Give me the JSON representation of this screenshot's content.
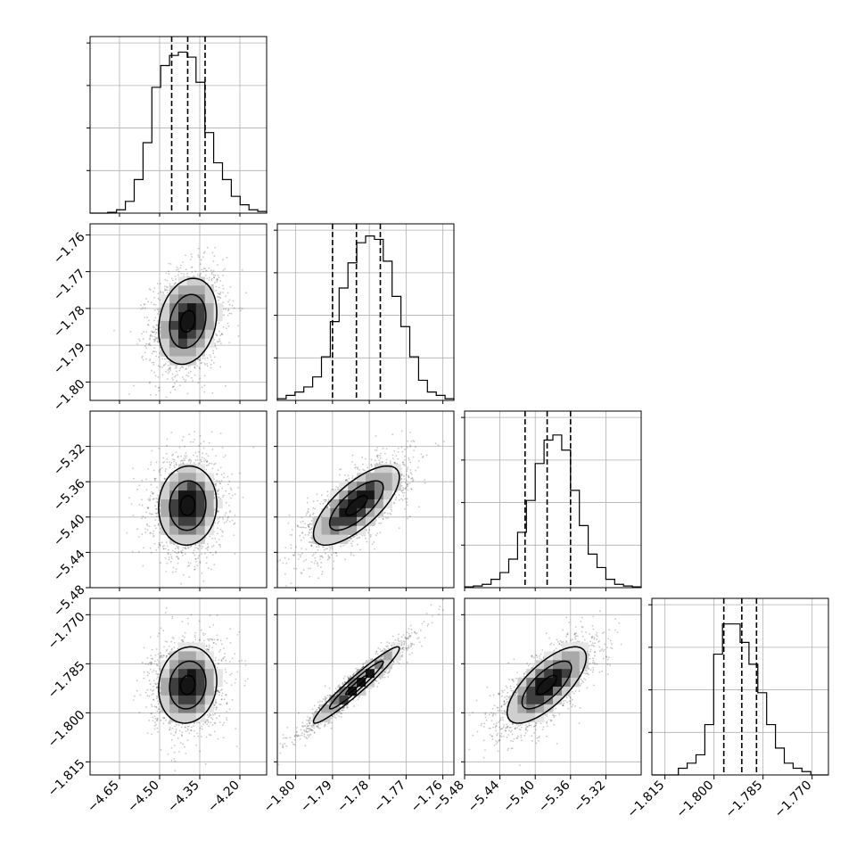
{
  "chart_data": {
    "type": "corner",
    "parameters": 4,
    "grid": true,
    "axis_ticks": [
      {
        "x_ticks": [
          -4.65,
          -4.5,
          -4.35,
          -4.2
        ],
        "x_labels": [
          "−4.65",
          "−4.50",
          "−4.35",
          "−4.20"
        ]
      },
      {
        "x_ticks": [
          -1.8,
          -1.79,
          -1.78,
          -1.77,
          -1.76
        ],
        "x_labels": [
          "−1.80",
          "−1.79",
          "−1.78",
          "−1.77",
          "−1.76"
        ],
        "y_ticks": [
          -1.76,
          -1.77,
          -1.78,
          -1.79,
          -1.8
        ],
        "y_labels": [
          "−1.76",
          "−1.77",
          "−1.78",
          "−1.79",
          "−1.80"
        ]
      },
      {
        "x_ticks": [
          -5.48,
          -5.44,
          -5.4,
          -5.36,
          -5.32
        ],
        "x_labels": [
          "−5.48",
          "−5.44",
          "−5.40",
          "−5.36",
          "−5.32"
        ],
        "y_ticks": [
          -5.32,
          -5.36,
          -5.4,
          -5.44,
          -5.48
        ],
        "y_labels": [
          "−5.32",
          "−5.36",
          "−5.40",
          "−5.44",
          "−5.48"
        ]
      },
      {
        "x_ticks": [
          -1.815,
          -1.8,
          -1.785,
          -1.77
        ],
        "x_labels": [
          "−1.815",
          "−1.800",
          "−1.785",
          "−1.770"
        ],
        "y_ticks": [
          -1.77,
          -1.785,
          -1.8,
          -1.815
        ],
        "y_labels": [
          "−1.770",
          "−1.785",
          "−1.800",
          "−1.815"
        ]
      }
    ],
    "ranges": [
      [
        -4.76,
        -4.1
      ],
      [
        -1.805,
        -1.757
      ],
      [
        -5.48,
        -5.28
      ],
      [
        -1.819,
        -1.765
      ]
    ],
    "marginals": [
      {
        "quantiles": [
          -4.455,
          -4.395,
          -4.33
        ],
        "counts": [
          0.0,
          0.0,
          0.005,
          0.02,
          0.07,
          0.2,
          0.42,
          0.75,
          0.88,
          0.94,
          0.96,
          0.93,
          0.78,
          0.48,
          0.3,
          0.2,
          0.1,
          0.05,
          0.02,
          0.01
        ]
      },
      {
        "quantiles": [
          -1.79,
          -1.7835,
          -1.777
        ],
        "counts": [
          0.01,
          0.03,
          0.05,
          0.08,
          0.14,
          0.26,
          0.47,
          0.67,
          0.82,
          0.94,
          0.98,
          0.96,
          0.83,
          0.62,
          0.44,
          0.26,
          0.12,
          0.05,
          0.03,
          0.01
        ]
      },
      {
        "quantiles": [
          -5.4115,
          -5.3865,
          -5.36
        ],
        "counts": [
          0.005,
          0.01,
          0.02,
          0.05,
          0.09,
          0.17,
          0.33,
          0.52,
          0.74,
          0.88,
          0.91,
          0.82,
          0.58,
          0.37,
          0.2,
          0.12,
          0.05,
          0.02,
          0.01,
          0.005
        ]
      },
      {
        "quantiles": [
          -1.797,
          -1.7915,
          -1.787
        ],
        "counts": [
          0.0,
          0.0,
          0.0,
          0.04,
          0.07,
          0.12,
          0.3,
          0.72,
          0.9,
          0.9,
          0.79,
          0.66,
          0.49,
          0.3,
          0.16,
          0.07,
          0.04,
          0.02,
          0.0,
          0.0
        ]
      }
    ],
    "pairs": [
      {
        "row": 1,
        "col": 0,
        "mean": [
          -4.395,
          -1.7835
        ],
        "sd": [
          0.068,
          0.0073
        ],
        "corr": 0.2
      },
      {
        "row": 2,
        "col": 0,
        "mean": [
          -4.395,
          -5.387
        ],
        "sd": [
          0.068,
          0.028
        ],
        "corr": 0.05
      },
      {
        "row": 2,
        "col": 1,
        "mean": [
          -1.7835,
          -5.387
        ],
        "sd": [
          0.0073,
          0.028
        ],
        "corr": 0.72
      },
      {
        "row": 3,
        "col": 0,
        "mean": [
          -4.395,
          -1.7915
        ],
        "sd": [
          0.068,
          0.0073
        ],
        "corr": 0.1
      },
      {
        "row": 3,
        "col": 1,
        "mean": [
          -1.7835,
          -1.7915
        ],
        "sd": [
          0.0073,
          0.0073
        ],
        "corr": 0.96
      },
      {
        "row": 3,
        "col": 2,
        "mean": [
          -5.387,
          -1.7915
        ],
        "sd": [
          0.028,
          0.0073
        ],
        "corr": 0.72
      }
    ],
    "contour_levels": [
      0.4,
      1.0,
      1.6
    ],
    "colors": {
      "line": "#000000",
      "grid": "#b0b0b0",
      "scatter": "#000000"
    }
  }
}
